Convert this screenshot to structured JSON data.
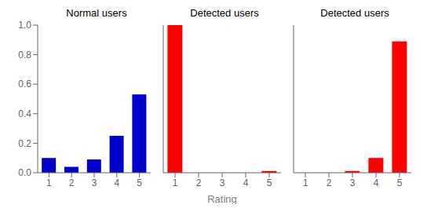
{
  "chart_data": [
    {
      "type": "bar",
      "title": "Normal users",
      "categories": [
        "1",
        "2",
        "3",
        "4",
        "5"
      ],
      "values": [
        0.1,
        0.04,
        0.09,
        0.25,
        0.53
      ],
      "color": "#0000cc",
      "ylim": [
        0,
        1.0
      ],
      "yticks": [
        {
          "value": 0.0,
          "label": "0.0"
        },
        {
          "value": 0.2,
          "label": "0.2"
        },
        {
          "value": 0.4,
          "label": "0.4"
        },
        {
          "value": 0.6,
          "label": "0.6"
        },
        {
          "value": 0.8,
          "label": "0.8"
        },
        {
          "value": 1.0,
          "label": "1.0"
        }
      ],
      "grid": false
    },
    {
      "type": "bar",
      "title": "Detected users",
      "xlabel": "Rating",
      "categories": [
        "1",
        "2",
        "3",
        "4",
        "5"
      ],
      "values": [
        1.0,
        0.0,
        0.0,
        0.0,
        0.012
      ],
      "color": "#ff0000",
      "ylim": [
        0,
        1.0
      ],
      "yticks": [
        {
          "value": 0.0,
          "label": "0.0"
        },
        {
          "value": 0.2,
          "label": "0.2"
        },
        {
          "value": 0.4,
          "label": "0.4"
        },
        {
          "value": 0.6,
          "label": "0.6"
        },
        {
          "value": 0.8,
          "label": "0.8"
        },
        {
          "value": 1.0,
          "label": "1.0"
        }
      ],
      "grid": false,
      "tick_labels": "x"
    },
    {
      "type": "bar",
      "title": "Detected users",
      "categories": [
        "1",
        "2",
        "3",
        "4",
        "5"
      ],
      "values": [
        0.0,
        0.0,
        0.012,
        0.1,
        0.89
      ],
      "color": "#ff0000",
      "ylim": [
        0,
        1.0
      ],
      "yticks": [
        {
          "value": 0.0,
          "label": "0.0"
        },
        {
          "value": 0.2,
          "label": "0.2"
        },
        {
          "value": 0.4,
          "label": "0.4"
        },
        {
          "value": 0.6,
          "label": "0.6"
        },
        {
          "value": 0.8,
          "label": "0.8"
        },
        {
          "value": 1.0,
          "label": "1.0"
        }
      ],
      "grid": false,
      "tick_labels": "x"
    }
  ]
}
